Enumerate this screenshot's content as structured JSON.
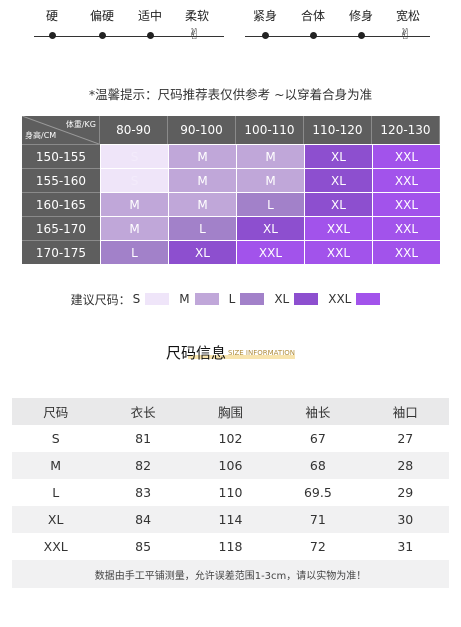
{
  "fabric_scale": {
    "labels": [
      "硬",
      "偏硬",
      "适中",
      "柔软"
    ],
    "selected_index": 3
  },
  "fit_scale": {
    "labels": [
      "紧身",
      "合体",
      "修身",
      "宽松"
    ],
    "selected_index": 3
  },
  "hand_icon": "✌",
  "tip": "*温馨提示：尺码推荐表仅供参考 ~以穿着合身为准",
  "rec_table": {
    "corner_weight": "体重/KG",
    "corner_height": "身高/CM",
    "weights": [
      "80-90",
      "90-100",
      "100-110",
      "110-120",
      "120-130"
    ],
    "rows": [
      {
        "height": "150-155",
        "sizes": [
          "S",
          "M",
          "M",
          "XL",
          "XXL"
        ]
      },
      {
        "height": "155-160",
        "sizes": [
          "S",
          "M",
          "M",
          "XL",
          "XXL"
        ]
      },
      {
        "height": "160-165",
        "sizes": [
          "M",
          "M",
          "L",
          "XL",
          "XXL"
        ]
      },
      {
        "height": "165-170",
        "sizes": [
          "M",
          "L",
          "XL",
          "XXL",
          "XXL"
        ]
      },
      {
        "height": "170-175",
        "sizes": [
          "L",
          "XL",
          "XXL",
          "XXL",
          "XXL"
        ]
      }
    ]
  },
  "size_colors": {
    "S": "#efe5f9",
    "M": "#c0a7d9",
    "L": "#a281c9",
    "XL": "#8d4fcf",
    "XXL": "#a253eb"
  },
  "legend": {
    "title": "建议尺码：",
    "items": [
      "S",
      "M",
      "L",
      "XL",
      "XXL"
    ]
  },
  "info_title": {
    "cn": "尺码信息",
    "en": "SIZE INFORMATION"
  },
  "info_table": {
    "headers": [
      "尺码",
      "衣长",
      "胸围",
      "袖长",
      "袖口"
    ],
    "rows": [
      [
        "S",
        "81",
        "102",
        "67",
        "27"
      ],
      [
        "M",
        "82",
        "106",
        "68",
        "28"
      ],
      [
        "L",
        "83",
        "110",
        "69.5",
        "29"
      ],
      [
        "XL",
        "84",
        "114",
        "71",
        "30"
      ],
      [
        "XXL",
        "85",
        "118",
        "72",
        "31"
      ]
    ],
    "note": "数据由手工平铺测量，允许误差范围1-3cm，请以实物为准！"
  }
}
